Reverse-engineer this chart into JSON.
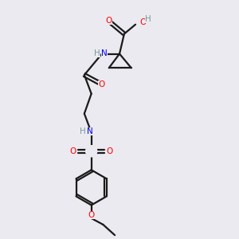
{
  "bg_color": "#eaeaf0",
  "bond_color": "#1a1a1a",
  "oxygen_color": "#ff0000",
  "nitrogen_color": "#0000ee",
  "sulfur_color": "#bbbb00",
  "hydrogen_color": "#7a9a9a",
  "line_width": 1.6,
  "fig_w": 3.0,
  "fig_h": 3.0,
  "dpi": 100,
  "xlim": [
    0,
    10
  ],
  "ylim": [
    0,
    10
  ]
}
